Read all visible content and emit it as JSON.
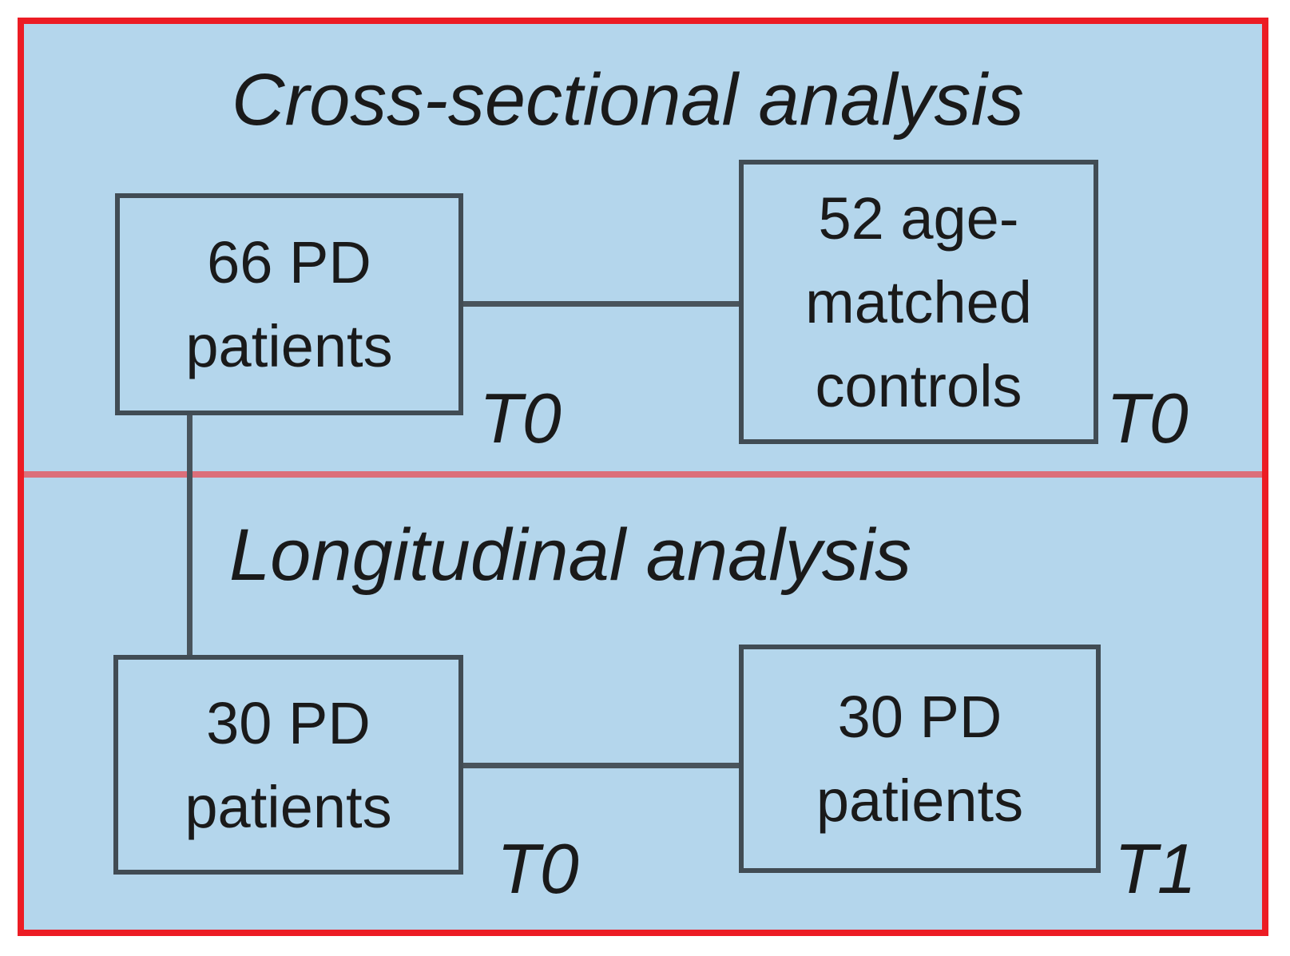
{
  "figure": {
    "background_color": "#b4d6ec",
    "frame_border_color": "#ec1c24",
    "divider_color": "#dc6f7a",
    "box_border_color": "#414c54",
    "connector_color": "#49545c",
    "text_color": "#1a1a1a",
    "sections": [
      {
        "title": "Cross-sectional analysis"
      },
      {
        "title": "Longitudinal analysis"
      }
    ],
    "boxes": [
      {
        "name": "pd-66",
        "lines": [
          "66 PD",
          "patients"
        ],
        "timepoint": "T0"
      },
      {
        "name": "controls-52",
        "lines": [
          "52 age-",
          "matched",
          "controls"
        ],
        "timepoint": "T0"
      },
      {
        "name": "pd-30-baseline",
        "lines": [
          "30 PD",
          "patients"
        ],
        "timepoint": "T0"
      },
      {
        "name": "pd-30-followup",
        "lines": [
          "30 PD",
          "patients"
        ],
        "timepoint": "T1"
      }
    ]
  }
}
